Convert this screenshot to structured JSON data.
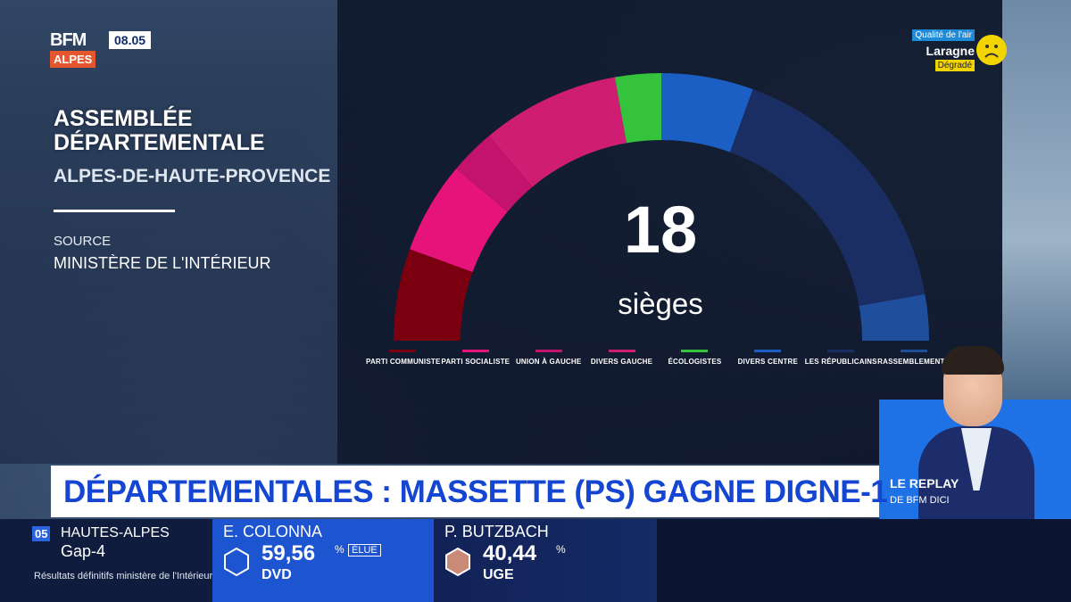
{
  "channel": {
    "logo": "BFM",
    "region": "ALPES",
    "time": "08.05"
  },
  "panel": {
    "title_line1": "ASSEMBLÉE",
    "title_line2": "DÉPARTEMENTALE",
    "department": "ALPES-DE-HAUTE-PROVENCE",
    "source_label": "SOURCE",
    "source_value": "MINISTÈRE DE L'INTÉRIEUR"
  },
  "air_quality": {
    "label": "Qualité de l'air",
    "city": "Laragne",
    "status": "Dégradé",
    "status_color": "#f2d400"
  },
  "chart_data": {
    "type": "parliament-arc",
    "total_value": "18",
    "total_label": "sièges",
    "series": [
      {
        "name": "PARTI COMMUNISTE",
        "color": "#7a0010",
        "value": 2
      },
      {
        "name": "PARTI SOCIALISTE",
        "color": "#e6147a",
        "value": 2
      },
      {
        "name": "UNION À GAUCHE",
        "color": "#c4136d",
        "value": 1
      },
      {
        "name": "DIVERS GAUCHE",
        "color": "#cf1d74",
        "value": 3
      },
      {
        "name": "ÉCOLOGISTES",
        "color": "#35c23d",
        "value": 1
      },
      {
        "name": "DIVERS CENTRE",
        "color": "#1c5fc4",
        "value": 2
      },
      {
        "name": "LES RÉPUBLICAINS",
        "color": "#1b2e63",
        "value": 6
      },
      {
        "name": "RASSEMBLEMENT NATIONAL",
        "color": "#1e4e9c",
        "value": 1
      }
    ]
  },
  "presenter": {
    "replay_title": "LE REPLAY",
    "replay_sub": "DE BFM DICI"
  },
  "headline": {
    "text": "DÉPARTEMENTALES : MASSETTE (PS) GAGNE DIGNE-1"
  },
  "ticker": {
    "dept_number": "05",
    "dept_name": "HAUTES-ALPES",
    "canton": "Gap-4",
    "note": "Résultats définitifs ministère de l'Intérieur",
    "candidates": [
      {
        "name": "E. COLONNA",
        "percent": "59,56",
        "unit": "%",
        "badge": "ÉLUE",
        "party": "DVD",
        "hex_color": "#1d55d0"
      },
      {
        "name": "P. BUTZBACH",
        "percent": "40,44",
        "unit": "%",
        "badge": "",
        "party": "UGE",
        "hex_color": "#c98a78"
      }
    ]
  }
}
